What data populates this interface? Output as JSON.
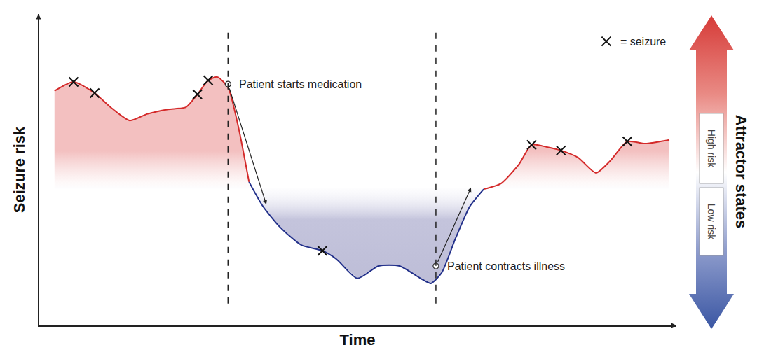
{
  "chart_data": {
    "type": "line",
    "x_label": "Time",
    "y_label": "Seizure risk",
    "xlim": [
      0,
      100
    ],
    "ylim": [
      0,
      100
    ],
    "tick_labels": false,
    "grid": false,
    "legend": "upper right",
    "boundary": 44,
    "series": [
      {
        "type": "line",
        "color": {
          "high": "#d42a2a",
          "low": "#22308a"
        },
        "x": [
          2.5,
          5.5,
          8.8,
          11.5,
          14.3,
          17.0,
          20.3,
          23.1,
          24.9,
          26.6,
          28.0,
          29.7,
          31.3,
          33.0,
          35.2,
          37.9,
          41.2,
          44.5,
          46.7,
          50.0,
          53.3,
          56.6,
          59.9,
          61.5,
          63.2,
          65.4,
          67.6,
          69.8,
          72.5,
          75.3,
          77.3,
          79.7,
          81.9,
          84.6,
          87.4,
          89.6,
          92.3,
          95.1,
          98.9
        ],
        "values": [
          75.3,
          78.2,
          74.6,
          69.7,
          65.8,
          67.9,
          69.4,
          70.1,
          74.2,
          78.7,
          79.8,
          76.4,
          64.0,
          46.1,
          38.2,
          31.5,
          25.8,
          24.0,
          21.3,
          15.1,
          19.1,
          19.1,
          15.1,
          13.5,
          16.9,
          28.1,
          38.2,
          43.8,
          45.6,
          51.7,
          58.0,
          57.3,
          56.2,
          53.9,
          49.0,
          52.8,
          59.1,
          58.4,
          59.6
        ]
      },
      {
        "type": "scatter",
        "name": "= seizure",
        "marker": "x",
        "color": "#111111",
        "x": [
          5.5,
          8.8,
          24.9,
          26.6,
          44.5,
          77.3,
          81.9,
          92.3
        ],
        "values": [
          78.2,
          74.6,
          74.2,
          78.7,
          24.0,
          58.0,
          56.2,
          59.1
        ]
      }
    ],
    "annotations": [
      {
        "text": "Patient starts medication",
        "x": 29.7,
        "y": 77.5,
        "arrow_x": 35.7,
        "arrow_y": 38.9
      },
      {
        "text": "Patient contracts illness",
        "x": 62.3,
        "y": 19.1,
        "arrow_x": 67.8,
        "arrow_y": 44.3
      }
    ],
    "attractor_states": {
      "title": "Attractor states",
      "labels": [
        "High risk",
        "Low risk"
      ]
    }
  }
}
